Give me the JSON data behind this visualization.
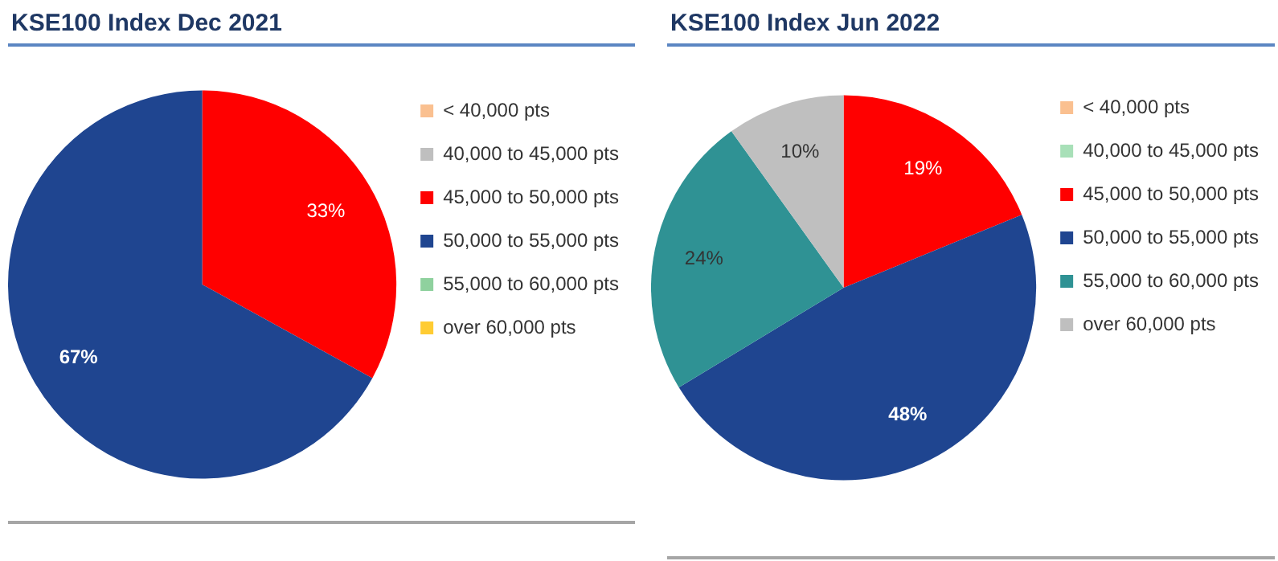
{
  "chart_data": [
    {
      "type": "pie",
      "title": "KSE100 Index Dec 2021",
      "categories": [
        "< 40,000 pts",
        "40,000 to 45,000 pts",
        "45,000 to 50,000 pts",
        "50,000 to 55,000 pts",
        "55,000 to 60,000 pts",
        "over 60,000 pts"
      ],
      "values": [
        0,
        0,
        33,
        67,
        0,
        0
      ],
      "colors": [
        "#fac090",
        "#bfbfbf",
        "#ff0000",
        "#1f4590",
        "#8fd19e",
        "#ffcc33"
      ],
      "value_labels": [
        null,
        null,
        "33%",
        "67%",
        null,
        null
      ],
      "legend": "right"
    },
    {
      "type": "pie",
      "title": "KSE100 Index Jun 2022",
      "categories": [
        "< 40,000 pts",
        "40,000 to 45,000 pts",
        "45,000 to 50,000 pts",
        "50,000 to 55,000 pts",
        "55,000 to 60,000 pts",
        "over 60,000 pts"
      ],
      "values": [
        0,
        0,
        19,
        48,
        24,
        10
      ],
      "colors": [
        "#fac090",
        "#a8e0b8",
        "#ff0000",
        "#1f4590",
        "#2f9294",
        "#bfbfbf"
      ],
      "value_labels": [
        null,
        null,
        "19%",
        "48%",
        "24%",
        "10%"
      ],
      "legend": "right"
    }
  ]
}
